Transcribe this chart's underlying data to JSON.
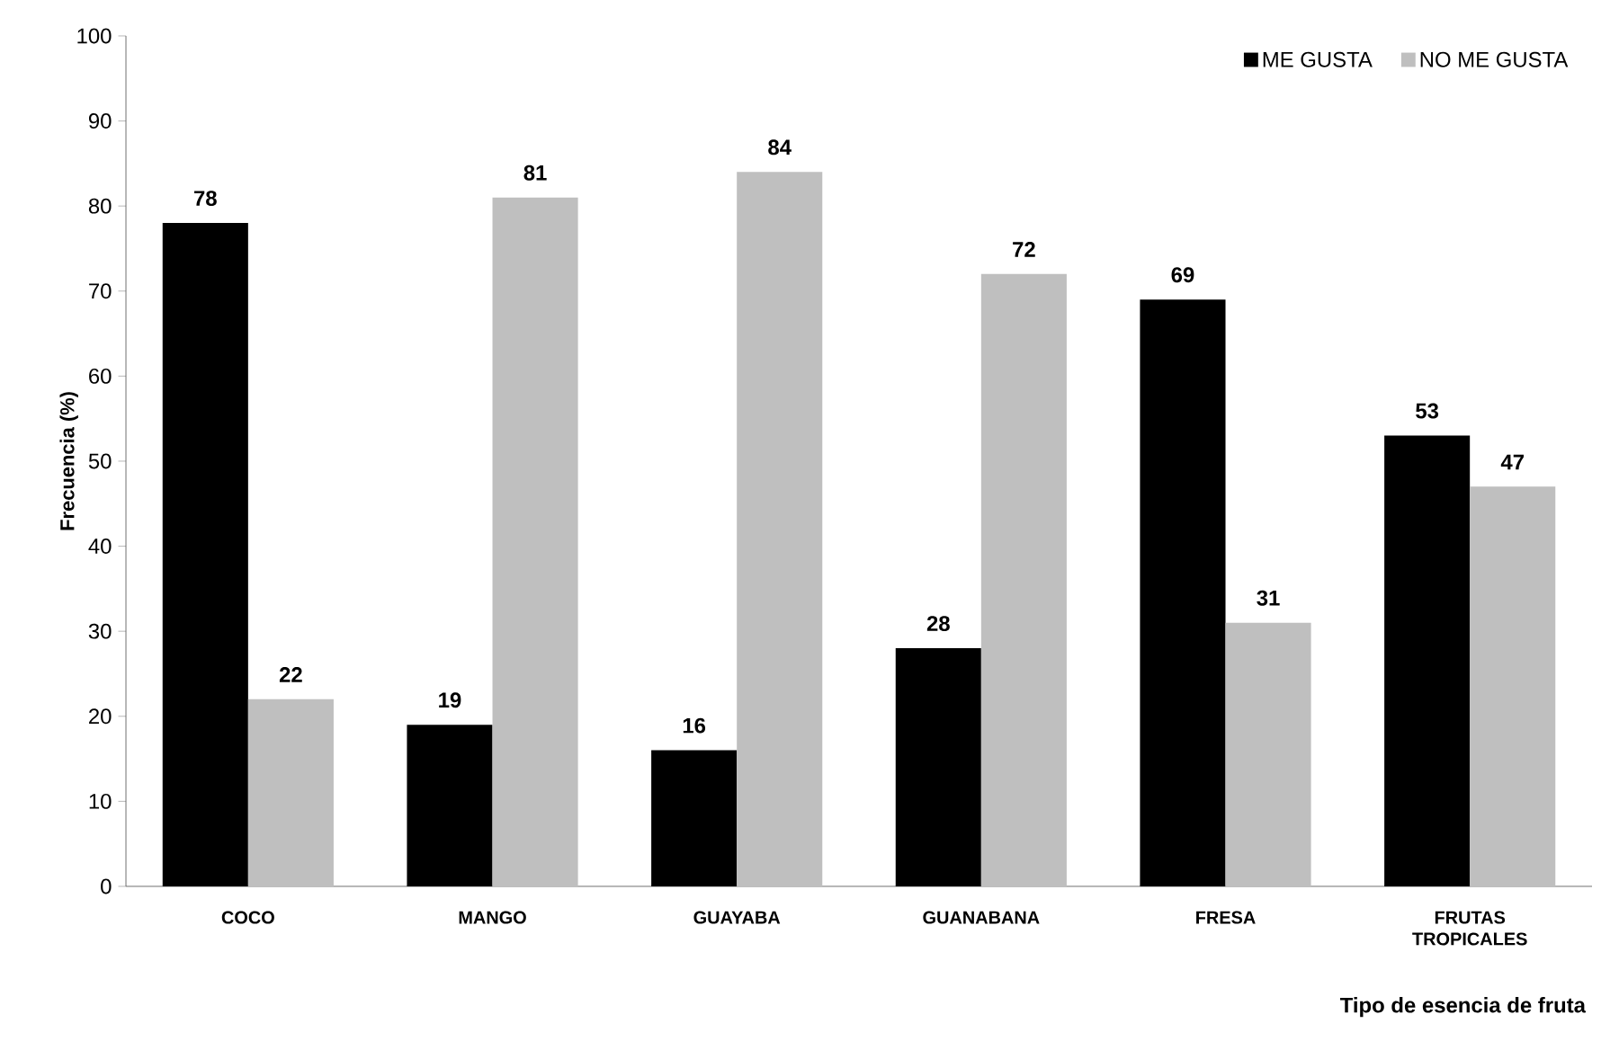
{
  "chart_data": {
    "type": "bar",
    "xlabel": "Tipo de esencia de fruta",
    "ylabel": "Frecuencia (%)",
    "categories": [
      "COCO",
      "MANGO",
      "GUAYABA",
      "GUANABANA",
      "FRESA",
      "FRUTAS TROPICALES"
    ],
    "series": [
      {
        "name": "ME GUSTA",
        "color": "#000000",
        "values": [
          78,
          19,
          16,
          28,
          69,
          53
        ]
      },
      {
        "name": "NO ME GUSTA",
        "color": "#bfbfbf",
        "values": [
          22,
          81,
          84,
          72,
          31,
          47
        ]
      }
    ],
    "ylim": [
      0,
      100
    ],
    "yticks": [
      0,
      10,
      20,
      30,
      40,
      50,
      60,
      70,
      80,
      90,
      100
    ],
    "data_labels": true,
    "legend": "top right",
    "grid": false
  }
}
